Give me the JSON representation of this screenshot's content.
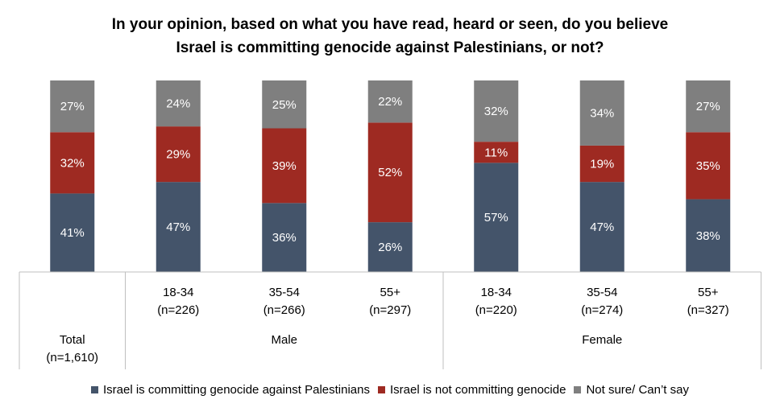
{
  "title_lines": [
    "In your opinion, based on what you have read, heard or seen, do you believe",
    "Israel is committing genocide against Palestinians, or not?"
  ],
  "colors": {
    "committing": "#44546a",
    "not_committing": "#9e2a22",
    "not_sure": "#7f7f7f"
  },
  "chart_data": {
    "type": "bar",
    "stacked": true,
    "percent_scale": [
      0,
      100
    ],
    "categories": [
      {
        "label": "Total",
        "n": "(n=1,610)"
      },
      {
        "label": "18-34",
        "n": "(n=226)"
      },
      {
        "label": "35-54",
        "n": "(n=266)"
      },
      {
        "label": "55+",
        "n": "(n=297)"
      },
      {
        "label": "18-34",
        "n": "(n=220)"
      },
      {
        "label": "35-54",
        "n": "(n=274)"
      },
      {
        "label": "55+",
        "n": "(n=327)"
      }
    ],
    "groups": [
      {
        "label": "Male",
        "categories": [
          1,
          2,
          3
        ]
      },
      {
        "label": "Female",
        "categories": [
          4,
          5,
          6
        ]
      }
    ],
    "series": [
      {
        "name": "Israel is committing genocide against Palestinians",
        "color_key": "committing",
        "values": [
          41,
          47,
          36,
          26,
          57,
          47,
          38
        ],
        "labels": [
          "41%",
          "47%",
          "36%",
          "26%",
          "57%",
          "47%",
          "38%"
        ]
      },
      {
        "name": "Israel is not committing genocide",
        "color_key": "not_committing",
        "values": [
          32,
          29,
          39,
          52,
          11,
          19,
          35
        ],
        "labels": [
          "32%",
          "29%",
          "39%",
          "52%",
          "11%",
          "19%",
          "35%"
        ]
      },
      {
        "name": "Not sure/ Can’t say",
        "color_key": "not_sure",
        "values": [
          27,
          24,
          25,
          22,
          32,
          34,
          27
        ],
        "labels": [
          "27%",
          "24%",
          "25%",
          "22%",
          "32%",
          "34%",
          "27%"
        ]
      }
    ]
  }
}
